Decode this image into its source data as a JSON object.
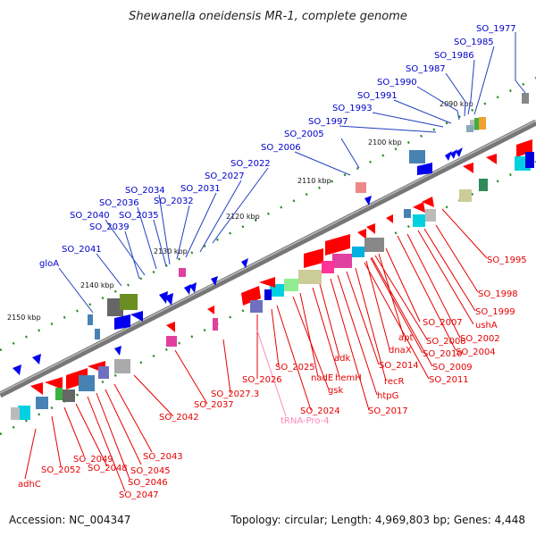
{
  "title": "Shewanella oneidensis MR-1, complete genome",
  "footer": {
    "accession": "Accession: NC_004347",
    "summary": "Topology: circular; Length: 4,969,803 bp; Genes: 4,448"
  },
  "colors": {
    "upper_label": "#0000cc",
    "lower_label": "#e60000",
    "trna_label": "#ff88bb",
    "backbone": "#777777"
  },
  "ticks": [
    "2090 kbp",
    "2100 kbp",
    "2110 kbp",
    "2120 kbp",
    "2130 kbp",
    "2140 kbp",
    "2150 kbp"
  ],
  "upper_labels": [
    "SO_1977",
    "SO_1985",
    "SO_1986",
    "SO_1987",
    "SO_1990",
    "SO_1991",
    "SO_1993",
    "SO_1997",
    "SO_2005",
    "SO_2006",
    "SO_2022",
    "SO_2027",
    "SO_2031",
    "SO_2032",
    "SO_2034",
    "SO_2036",
    "SO_2035",
    "SO_2040",
    "SO_2039",
    "SO_2041",
    "gloA"
  ],
  "lower_labels": [
    "SO_1995",
    "SO_1998",
    "SO_1999",
    "ushA",
    "SO_2002",
    "SO_2004",
    "SO_2007",
    "apt",
    "SO_2008",
    "SO_2010",
    "SO_2009",
    "dnaX",
    "recR",
    "SO_2011",
    "SO_2014",
    "adk",
    "hemH",
    "htpG",
    "SO_2017",
    "nadE",
    "gsk",
    "SO_2024",
    "SO_2025",
    "SO_2026",
    "SO_2027.3",
    "SO_2037",
    "SO_2042",
    "SO_2043",
    "SO_2045",
    "SO_2046",
    "SO_2047",
    "SO_2048",
    "SO_2049",
    "SO_2052",
    "adhC"
  ],
  "trna_labels": [
    "tRNA-Pro-4"
  ]
}
